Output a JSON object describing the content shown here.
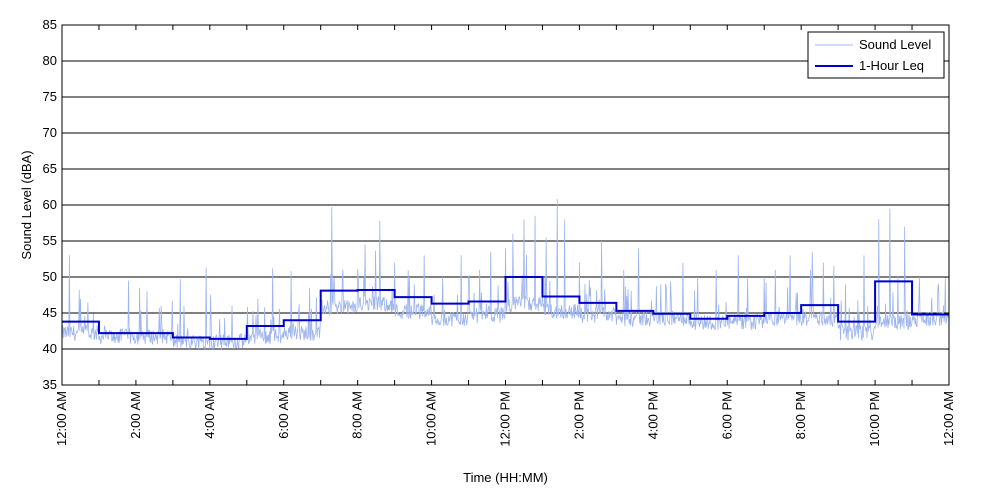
{
  "chart_data": {
    "type": "line",
    "xlabel": "Time (HH:MM)",
    "ylabel": "Sound Level (dBA)",
    "ylim": [
      35,
      85
    ],
    "yticks": [
      35,
      40,
      45,
      50,
      55,
      60,
      65,
      70,
      75,
      80,
      85
    ],
    "xlim_hours": [
      0,
      24
    ],
    "xtick_hours": [
      0,
      2,
      4,
      6,
      8,
      10,
      12,
      14,
      16,
      18,
      20,
      22,
      24
    ],
    "xtick_labels": [
      "12:00 AM",
      "2:00 AM",
      "4:00 AM",
      "6:00 AM",
      "8:00 AM",
      "10:00 AM",
      "12:00 PM",
      "2:00 PM",
      "4:00 PM",
      "6:00 PM",
      "8:00 PM",
      "10:00 PM",
      "12:00 AM"
    ],
    "minor_xtick_hours": [
      1,
      3,
      5,
      7,
      9,
      11,
      13,
      15,
      17,
      19,
      21,
      23
    ],
    "grid": "horizontal",
    "legend_position": "top-right",
    "colors": {
      "sound_level": "#9db4ee",
      "leq": "#0000cc",
      "grid": "#000000"
    },
    "series": [
      {
        "name": "Sound Level",
        "style": "thin-line",
        "hourly_base_dBA": [
          42,
          41.5,
          41.5,
          40.8,
          40.8,
          41.5,
          42,
          45.5,
          46,
          45,
          44,
          44.5,
          46,
          45,
          44.5,
          44,
          44,
          43.5,
          43.5,
          44,
          44,
          42,
          43.5,
          44
        ],
        "peaks": [
          [
            0.2,
            53
          ],
          [
            0.5,
            47
          ],
          [
            0.7,
            46.5
          ],
          [
            1.8,
            49.5
          ],
          [
            2.1,
            48.5
          ],
          [
            2.3,
            48
          ],
          [
            3.3,
            46
          ],
          [
            3.9,
            51.3
          ],
          [
            4.6,
            46
          ],
          [
            5.3,
            47
          ],
          [
            5.7,
            51.2
          ],
          [
            6.2,
            50.8
          ],
          [
            6.7,
            48.5
          ],
          [
            7.3,
            59.7
          ],
          [
            7.6,
            51
          ],
          [
            8.2,
            54.5
          ],
          [
            8.6,
            57.8
          ],
          [
            9.0,
            52
          ],
          [
            9.4,
            50
          ],
          [
            9.8,
            53
          ],
          [
            10.3,
            50
          ],
          [
            10.8,
            53
          ],
          [
            11.3,
            51
          ],
          [
            11.6,
            53.5
          ],
          [
            12.0,
            54
          ],
          [
            12.2,
            56
          ],
          [
            12.5,
            58
          ],
          [
            12.8,
            58.5
          ],
          [
            13.1,
            55.5
          ],
          [
            13.4,
            60.8
          ],
          [
            13.6,
            58
          ],
          [
            14.0,
            52
          ],
          [
            14.6,
            55
          ],
          [
            15.2,
            51
          ],
          [
            15.6,
            54
          ],
          [
            16.2,
            49
          ],
          [
            16.8,
            52
          ],
          [
            17.2,
            50
          ],
          [
            17.7,
            51
          ],
          [
            18.3,
            53
          ],
          [
            19.0,
            50
          ],
          [
            19.3,
            51
          ],
          [
            19.7,
            53
          ],
          [
            20.3,
            53.5
          ],
          [
            20.6,
            52
          ],
          [
            21.2,
            49
          ],
          [
            21.7,
            53
          ],
          [
            22.1,
            58
          ],
          [
            22.4,
            59.5
          ],
          [
            22.8,
            57
          ],
          [
            23.2,
            50
          ],
          [
            23.7,
            48.5
          ],
          [
            23.9,
            50
          ]
        ]
      },
      {
        "name": "1-Hour Leq",
        "style": "step",
        "values": [
          43.8,
          42.2,
          42.2,
          41.6,
          41.4,
          43.2,
          44.0,
          48.1,
          48.2,
          47.2,
          46.3,
          46.6,
          50.0,
          47.3,
          46.4,
          45.3,
          44.9,
          44.2,
          44.6,
          45.0,
          46.1,
          43.8,
          49.4,
          44.8
        ]
      }
    ]
  }
}
